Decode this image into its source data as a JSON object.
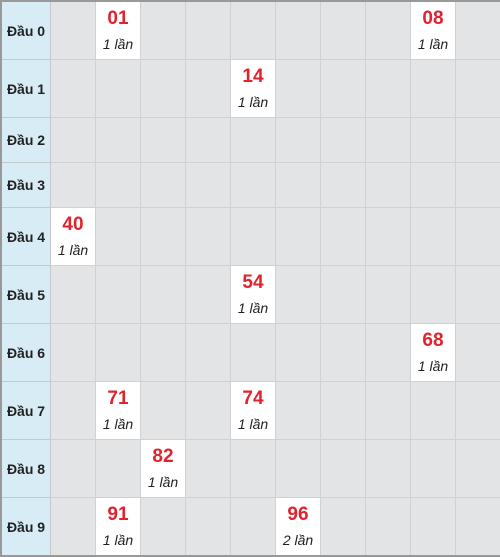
{
  "rows": [
    {
      "label": "Đầu 0",
      "cells": [
        null,
        {
          "num": "01",
          "count": "1 lần"
        },
        null,
        null,
        null,
        null,
        null,
        null,
        {
          "num": "08",
          "count": "1 lần"
        },
        null
      ]
    },
    {
      "label": "Đầu 1",
      "cells": [
        null,
        null,
        null,
        null,
        {
          "num": "14",
          "count": "1 lần"
        },
        null,
        null,
        null,
        null,
        null
      ]
    },
    {
      "label": "Đầu 2",
      "cells": [
        null,
        null,
        null,
        null,
        null,
        null,
        null,
        null,
        null,
        null
      ]
    },
    {
      "label": "Đầu 3",
      "cells": [
        null,
        null,
        null,
        null,
        null,
        null,
        null,
        null,
        null,
        null
      ]
    },
    {
      "label": "Đầu 4",
      "cells": [
        {
          "num": "40",
          "count": "1 lần"
        },
        null,
        null,
        null,
        null,
        null,
        null,
        null,
        null,
        null
      ]
    },
    {
      "label": "Đầu 5",
      "cells": [
        null,
        null,
        null,
        null,
        {
          "num": "54",
          "count": "1 lần"
        },
        null,
        null,
        null,
        null,
        null
      ]
    },
    {
      "label": "Đầu 6",
      "cells": [
        null,
        null,
        null,
        null,
        null,
        null,
        null,
        null,
        {
          "num": "68",
          "count": "1 lần"
        },
        null
      ]
    },
    {
      "label": "Đầu 7",
      "cells": [
        null,
        {
          "num": "71",
          "count": "1 lần"
        },
        null,
        null,
        {
          "num": "74",
          "count": "1 lần"
        },
        null,
        null,
        null,
        null,
        null
      ]
    },
    {
      "label": "Đầu 8",
      "cells": [
        null,
        null,
        {
          "num": "82",
          "count": "1 lần"
        },
        null,
        null,
        null,
        null,
        null,
        null,
        null
      ]
    },
    {
      "label": "Đầu 9",
      "cells": [
        null,
        {
          "num": "91",
          "count": "1 lần"
        },
        null,
        null,
        null,
        {
          "num": "96",
          "count": "2 lần"
        },
        null,
        null,
        null,
        null
      ]
    }
  ],
  "colors": {
    "number": "#e0232e",
    "header_bg": "#d8ecf6",
    "empty_bg": "#e3e4e6",
    "filled_bg": "#ffffff"
  }
}
